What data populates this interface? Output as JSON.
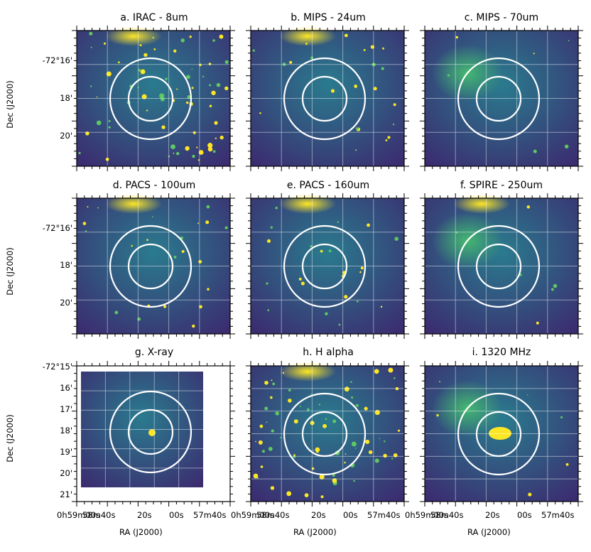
{
  "figure": {
    "panels": [
      {
        "id": "a",
        "title": "a. IRAC - 8um"
      },
      {
        "id": "b",
        "title": "b. MIPS - 24um"
      },
      {
        "id": "c",
        "title": "c. MIPS - 70um"
      },
      {
        "id": "d",
        "title": "d. PACS - 100um"
      },
      {
        "id": "e",
        "title": "e. PACS - 160um"
      },
      {
        "id": "f",
        "title": "f. SPIRE - 250um"
      },
      {
        "id": "g",
        "title": "g. X-ray"
      },
      {
        "id": "h",
        "title": "h. H alpha"
      },
      {
        "id": "i",
        "title": "i. 1320 MHz"
      }
    ],
    "y_axis_label": "Dec (J2000)",
    "x_axis_label": "RA (J2000)",
    "dec_ticks_rows_1_2": [
      "-72°16'",
      "18'",
      "20'"
    ],
    "dec_ticks_row_3": [
      "-72°15'",
      "16'",
      "17'",
      "18'",
      "19'",
      "20'",
      "21'"
    ],
    "ra_ticks": [
      "0h59m00s",
      "58m40s",
      "20s",
      "00s",
      "57m40s"
    ],
    "colormap": "viridis",
    "colors": {
      "low": "#3b2c70",
      "mid": "#2a7b8e",
      "high": "#fde725",
      "overlay": "#ffffff"
    }
  }
}
